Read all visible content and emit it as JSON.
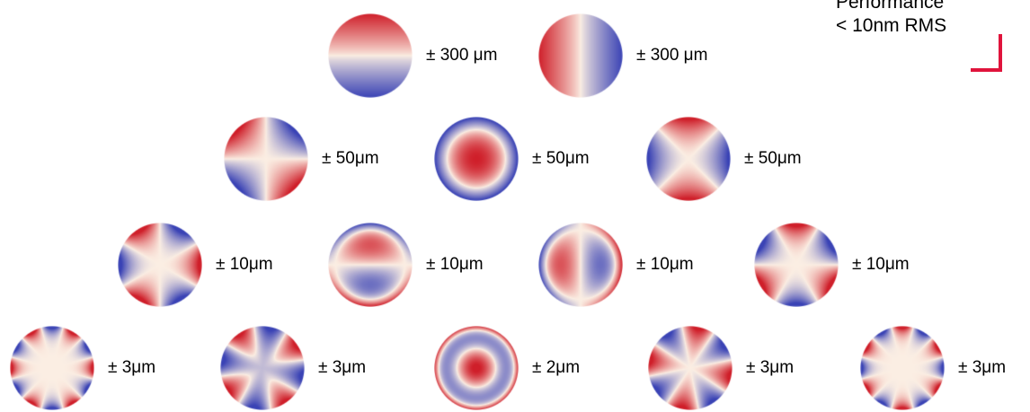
{
  "performance": {
    "line1": "Performance",
    "line2": "< 10nm RMS",
    "corner_color": "#e0143c"
  },
  "colors": {
    "blue": "#3a43b5",
    "neutral": "#fbeee3",
    "red": "#cf1f2a"
  },
  "rows": [
    {
      "items": [
        {
          "name": "vertical-gradient-map",
          "pattern": "gradient-vertical",
          "label": "± 300 μm"
        },
        {
          "name": "horizontal-gradient-map",
          "pattern": "gradient-horizontal",
          "label": "± 300 μm"
        }
      ]
    },
    {
      "items": [
        {
          "name": "diagonal-saddle-map",
          "pattern": "saddle-diagonal",
          "label": "± 50μm"
        },
        {
          "name": "radial-focus-map",
          "pattern": "radial-focus",
          "label": "± 50μm"
        },
        {
          "name": "axial-saddle-map",
          "pattern": "saddle-axial",
          "label": "± 50μm"
        }
      ]
    },
    {
      "items": [
        {
          "name": "trefoil-map-a",
          "pattern": "trefoil-a",
          "label": "± 10μm"
        },
        {
          "name": "vertical-coma-map",
          "pattern": "coma-vertical",
          "label": "± 10μm"
        },
        {
          "name": "horizontal-coma-map",
          "pattern": "coma-horizontal",
          "label": "± 10μm"
        },
        {
          "name": "trefoil-map-b",
          "pattern": "trefoil-b",
          "label": "± 10μm"
        }
      ]
    },
    {
      "items": [
        {
          "name": "hexafoil-map-a",
          "pattern": "hexafoil-a",
          "label": "± 3μm"
        },
        {
          "name": "quadrafoil-map-blue",
          "pattern": "quad-blue",
          "label": "± 3μm"
        },
        {
          "name": "spherical-map",
          "pattern": "spherical",
          "label": "± 2μm"
        },
        {
          "name": "quadrafoil-map-red",
          "pattern": "quad-red",
          "label": "± 3μm"
        },
        {
          "name": "hexafoil-map-b",
          "pattern": "hexafoil-b",
          "label": "± 3μm"
        }
      ]
    }
  ]
}
